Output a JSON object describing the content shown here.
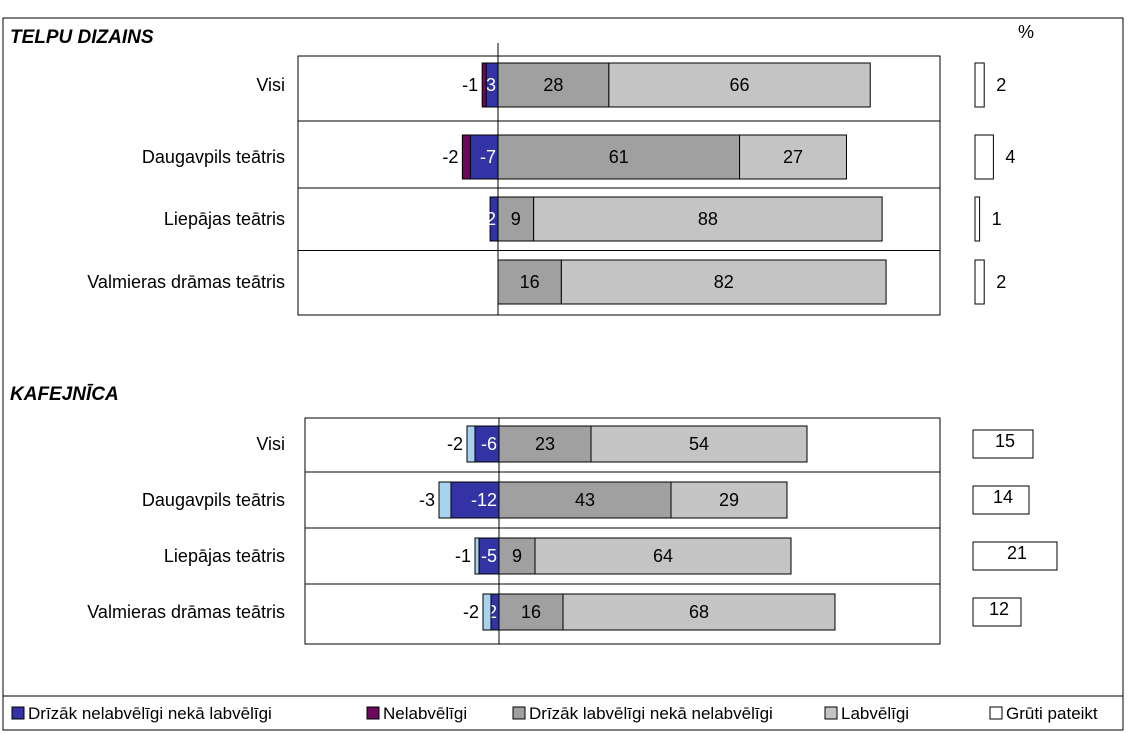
{
  "percent_label": "%",
  "colors": {
    "drizak_nelabvel": "#3333a6",
    "nelabvel": "#6b0a5a",
    "drizak_labvel": "#a0a0a0",
    "labvel": "#c4c4c4",
    "gruti": "#ffffff",
    "kafe_negative_light": "#a9d2f0"
  },
  "legend": [
    {
      "key": "drizak_nelabvel",
      "label": "Drīzāk nelabvēlīgi nekā labvēlīgi"
    },
    {
      "key": "nelabvel",
      "label": "Nelabvēlīgi"
    },
    {
      "key": "drizak_labvel",
      "label": "Drīzāk labvēlīgi nekā nelabvēlīgi"
    },
    {
      "key": "labvel",
      "label": "Labvēlīgi"
    },
    {
      "key": "gruti",
      "label": "Grūti pateikt"
    }
  ],
  "chart_data": [
    {
      "type": "bar",
      "stacked": "diverging-horizontal",
      "title": "TELPU DIZAINS",
      "unit": "%",
      "categories": [
        "Visi",
        "Daugavpils teātris",
        "Liepājas teātris",
        "Valmieras drāmas teātris"
      ],
      "series": [
        {
          "name": "Nelabvēlīgi",
          "values": [
            -1,
            -2,
            null,
            null
          ]
        },
        {
          "name": "Drīzāk nelabvēlīgi nekā labvēlīgi",
          "values": [
            -3,
            -7,
            -2,
            null
          ]
        },
        {
          "name": "Drīzāk labvēlīgi nekā nelabvēlīgi",
          "values": [
            28,
            61,
            9,
            16
          ]
        },
        {
          "name": "Labvēlīgi",
          "values": [
            66,
            27,
            88,
            82
          ]
        },
        {
          "name": "Grūti pateikt",
          "values": [
            2,
            4,
            1,
            2
          ]
        }
      ]
    },
    {
      "type": "bar",
      "stacked": "diverging-horizontal",
      "title": "KAFEJNĪCA",
      "unit": "%",
      "categories": [
        "Visi",
        "Daugavpils teātris",
        "Liepājas teātris",
        "Valmieras drāmas teātris"
      ],
      "series": [
        {
          "name": "Nelabvēlīgi",
          "values": [
            -2,
            -3,
            -1,
            -2
          ]
        },
        {
          "name": "Drīzāk nelabvēlīgi nekā labvēlīgi",
          "values": [
            -6,
            -12,
            -5,
            -2
          ]
        },
        {
          "name": "Drīzāk labvēlīgi nekā nelabvēlīgi",
          "values": [
            23,
            43,
            9,
            16
          ]
        },
        {
          "name": "Labvēlīgi",
          "values": [
            54,
            29,
            64,
            68
          ]
        },
        {
          "name": "Grūti pateikt",
          "values": [
            15,
            14,
            21,
            12
          ]
        }
      ]
    }
  ]
}
